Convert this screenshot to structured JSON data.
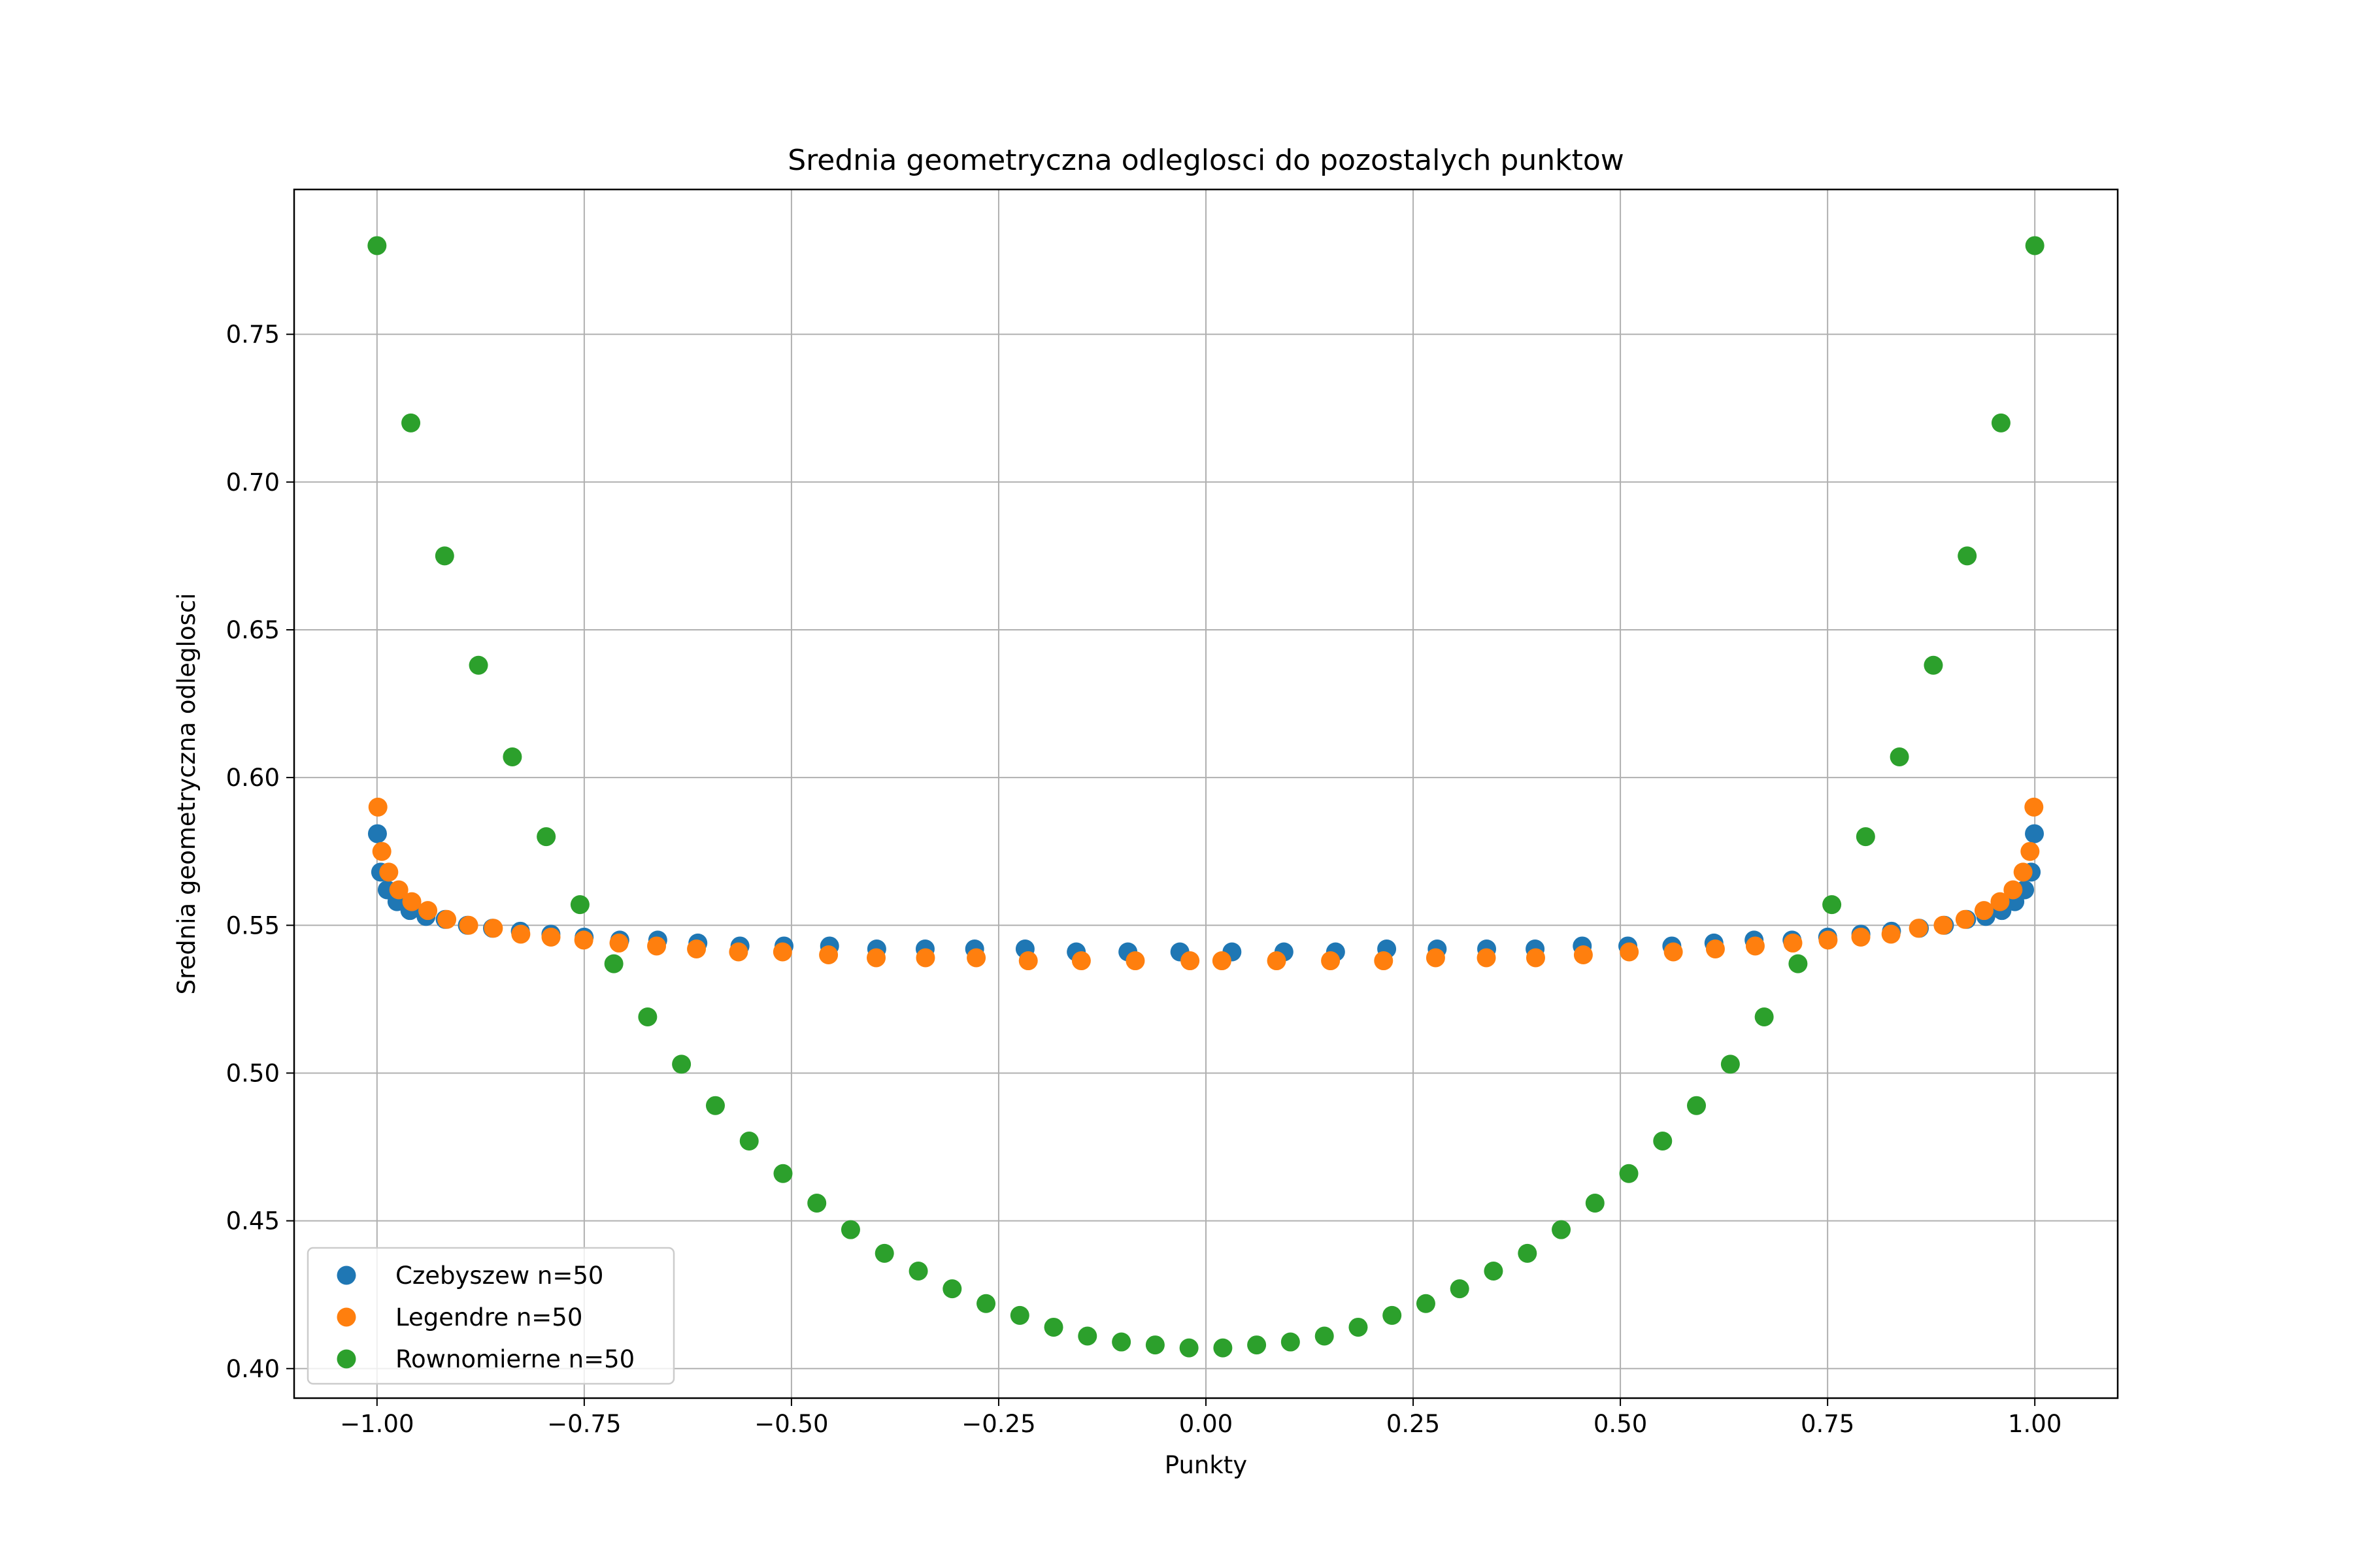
{
  "chart_data": {
    "type": "scatter",
    "title": "Srednia geometryczna odleglosci do pozostalych punktow",
    "xlabel": "Punkty",
    "ylabel": "Srednia geometryczna odleglosci",
    "xlim": [
      -1.1,
      1.1
    ],
    "ylim": [
      0.39,
      0.799
    ],
    "xticks": [
      -1.0,
      -0.75,
      -0.5,
      -0.25,
      0.0,
      0.25,
      0.5,
      0.75,
      1.0
    ],
    "xtick_labels": [
      "−1.00",
      "−0.75",
      "−0.50",
      "−0.25",
      "0.00",
      "0.25",
      "0.50",
      "0.75",
      "1.00"
    ],
    "yticks": [
      0.4,
      0.45,
      0.5,
      0.55,
      0.6,
      0.65,
      0.7,
      0.75
    ],
    "ytick_labels": [
      "0.40",
      "0.45",
      "0.50",
      "0.55",
      "0.60",
      "0.65",
      "0.70",
      "0.75"
    ],
    "grid": true,
    "legend_position": "bottom-left",
    "series": [
      {
        "name": "Czebyszew n=50",
        "color": "#1f77b4",
        "x": [
          -0.9995,
          -0.9956,
          -0.9877,
          -0.9759,
          -0.9603,
          -0.9409,
          -0.9178,
          -0.891,
          -0.8607,
          -0.8271,
          -0.7902,
          -0.7501,
          -0.7071,
          -0.6613,
          -0.6129,
          -0.5621,
          -0.509,
          -0.454,
          -0.3971,
          -0.3387,
          -0.279,
          -0.2181,
          -0.1564,
          -0.0941,
          -0.0314,
          0.0314,
          0.0941,
          0.1564,
          0.2181,
          0.279,
          0.3387,
          0.3971,
          0.454,
          0.509,
          0.5621,
          0.6129,
          0.6613,
          0.7071,
          0.7501,
          0.7902,
          0.8271,
          0.8607,
          0.891,
          0.9178,
          0.9409,
          0.9603,
          0.9759,
          0.9877,
          0.9956,
          0.9995
        ],
        "y": [
          0.581,
          0.568,
          0.562,
          0.558,
          0.555,
          0.553,
          0.552,
          0.55,
          0.549,
          0.548,
          0.547,
          0.546,
          0.545,
          0.545,
          0.544,
          0.543,
          0.543,
          0.543,
          0.542,
          0.542,
          0.542,
          0.542,
          0.541,
          0.541,
          0.541,
          0.541,
          0.541,
          0.541,
          0.542,
          0.542,
          0.542,
          0.542,
          0.543,
          0.543,
          0.543,
          0.544,
          0.545,
          0.545,
          0.546,
          0.547,
          0.548,
          0.549,
          0.55,
          0.552,
          0.553,
          0.555,
          0.558,
          0.562,
          0.568,
          0.581
        ]
      },
      {
        "name": "Legendre n=50",
        "color": "#ff7f0e",
        "x": [
          -0.9989,
          -0.9942,
          -0.9858,
          -0.9737,
          -0.958,
          -0.9387,
          -0.9158,
          -0.8894,
          -0.8596,
          -0.8265,
          -0.7901,
          -0.7506,
          -0.7081,
          -0.6627,
          -0.6146,
          -0.5639,
          -0.5107,
          -0.4553,
          -0.3978,
          -0.3383,
          -0.2771,
          -0.2143,
          -0.1503,
          -0.0852,
          -0.0192,
          0.0192,
          0.0852,
          0.1503,
          0.2143,
          0.2771,
          0.3383,
          0.3978,
          0.4553,
          0.5107,
          0.5639,
          0.6146,
          0.6627,
          0.7081,
          0.7506,
          0.7901,
          0.8265,
          0.8596,
          0.8894,
          0.9158,
          0.9387,
          0.958,
          0.9737,
          0.9858,
          0.9942,
          0.9989
        ],
        "y": [
          0.59,
          0.575,
          0.568,
          0.562,
          0.558,
          0.555,
          0.552,
          0.55,
          0.549,
          0.547,
          0.546,
          0.545,
          0.544,
          0.543,
          0.542,
          0.541,
          0.541,
          0.54,
          0.539,
          0.539,
          0.539,
          0.538,
          0.538,
          0.538,
          0.538,
          0.538,
          0.538,
          0.538,
          0.538,
          0.539,
          0.539,
          0.539,
          0.54,
          0.541,
          0.541,
          0.542,
          0.543,
          0.544,
          0.545,
          0.546,
          0.547,
          0.549,
          0.55,
          0.552,
          0.555,
          0.558,
          0.562,
          0.568,
          0.575,
          0.59
        ]
      },
      {
        "name": "Rownomierne n=50",
        "color": "#2ca02c",
        "x": [
          -1.0,
          -0.9592,
          -0.9184,
          -0.8776,
          -0.8367,
          -0.7959,
          -0.7551,
          -0.7143,
          -0.6735,
          -0.6327,
          -0.5918,
          -0.551,
          -0.5102,
          -0.4694,
          -0.4286,
          -0.3878,
          -0.3469,
          -0.3061,
          -0.2653,
          -0.2245,
          -0.1837,
          -0.1429,
          -0.102,
          -0.0612,
          -0.0204,
          0.0204,
          0.0612,
          0.102,
          0.1429,
          0.1837,
          0.2245,
          0.2653,
          0.3061,
          0.3469,
          0.3878,
          0.4286,
          0.4694,
          0.5102,
          0.551,
          0.5918,
          0.6327,
          0.6735,
          0.7143,
          0.7551,
          0.7959,
          0.8367,
          0.8776,
          0.9184,
          0.9592,
          1.0
        ],
        "y": [
          0.78,
          0.72,
          0.675,
          0.638,
          0.607,
          0.58,
          0.557,
          0.537,
          0.519,
          0.503,
          0.489,
          0.477,
          0.466,
          0.456,
          0.447,
          0.439,
          0.433,
          0.427,
          0.422,
          0.418,
          0.414,
          0.411,
          0.409,
          0.408,
          0.407,
          0.407,
          0.408,
          0.409,
          0.411,
          0.414,
          0.418,
          0.422,
          0.427,
          0.433,
          0.439,
          0.447,
          0.456,
          0.466,
          0.477,
          0.489,
          0.503,
          0.519,
          0.537,
          0.557,
          0.58,
          0.607,
          0.638,
          0.675,
          0.72,
          0.78
        ]
      }
    ]
  }
}
